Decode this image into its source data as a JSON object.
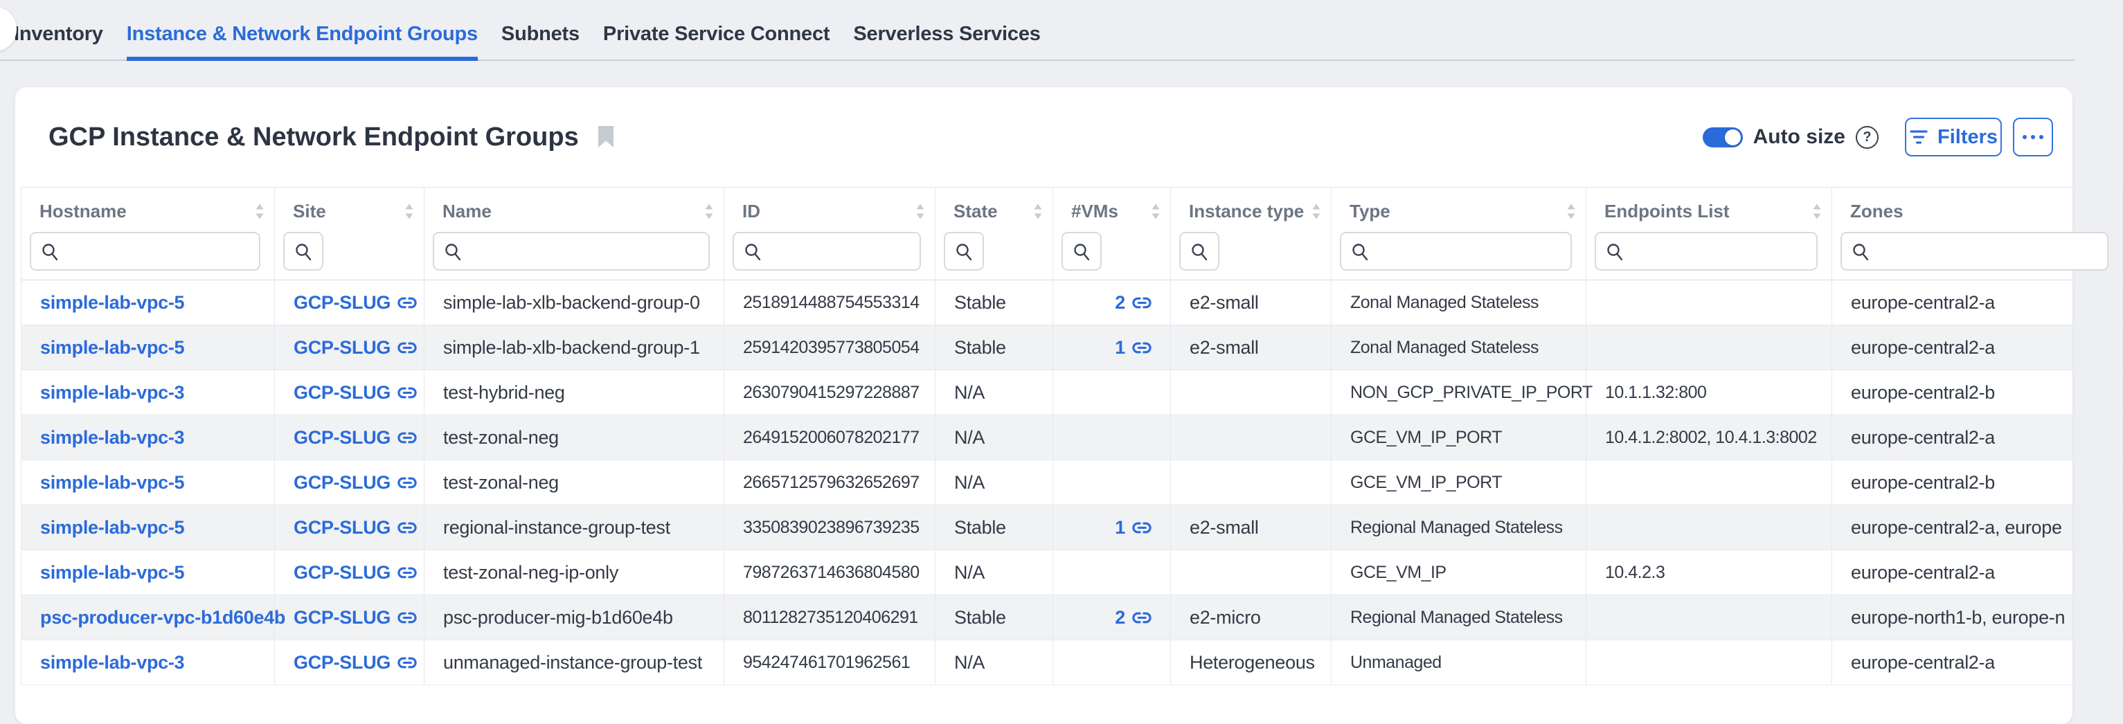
{
  "tabs": {
    "items": [
      {
        "label": "Inventory",
        "active": false
      },
      {
        "label": "Instance & Network Endpoint Groups",
        "active": true
      },
      {
        "label": "Subnets",
        "active": false
      },
      {
        "label": "Private Service Connect",
        "active": false
      },
      {
        "label": "Serverless Services",
        "active": false
      }
    ]
  },
  "header": {
    "title": "GCP Instance & Network Endpoint Groups",
    "auto_size_label": "Auto size",
    "auto_size_on": true,
    "filters_label": "Filters"
  },
  "colors": {
    "accent_blue": "#2b6bd9",
    "row_stripe": "#f1f2f4",
    "page_background": "#edeff3",
    "tab_text": "#2f3744"
  },
  "table": {
    "filter_placeholder": "",
    "columns": [
      {
        "key": "hostname",
        "label": "Hostname"
      },
      {
        "key": "site",
        "label": "Site"
      },
      {
        "key": "name",
        "label": "Name"
      },
      {
        "key": "id",
        "label": "ID"
      },
      {
        "key": "state",
        "label": "State"
      },
      {
        "key": "vms",
        "label": "#VMs"
      },
      {
        "key": "instance_type",
        "label": "Instance type"
      },
      {
        "key": "type",
        "label": "Type"
      },
      {
        "key": "endpoints",
        "label": "Endpoints List"
      },
      {
        "key": "zones",
        "label": "Zones"
      }
    ],
    "rows": [
      {
        "hostname": "simple-lab-vpc-5",
        "site": "GCP-SLUG",
        "name": "simple-lab-xlb-backend-group-0",
        "id": "2518914488754553314",
        "state": "Stable",
        "vms": "2",
        "instance_type": "e2-small",
        "type": "Zonal Managed Stateless",
        "endpoints": "",
        "zones": "europe-central2-a"
      },
      {
        "hostname": "simple-lab-vpc-5",
        "site": "GCP-SLUG",
        "name": "simple-lab-xlb-backend-group-1",
        "id": "2591420395773805054",
        "state": "Stable",
        "vms": "1",
        "instance_type": "e2-small",
        "type": "Zonal Managed Stateless",
        "endpoints": "",
        "zones": "europe-central2-a"
      },
      {
        "hostname": "simple-lab-vpc-3",
        "site": "GCP-SLUG",
        "name": "test-hybrid-neg",
        "id": "2630790415297228887",
        "state": "N/A",
        "vms": "",
        "instance_type": "",
        "type": "NON_GCP_PRIVATE_IP_PORT",
        "endpoints": "10.1.1.32:800",
        "zones": "europe-central2-b"
      },
      {
        "hostname": "simple-lab-vpc-3",
        "site": "GCP-SLUG",
        "name": "test-zonal-neg",
        "id": "2649152006078202177",
        "state": "N/A",
        "vms": "",
        "instance_type": "",
        "type": "GCE_VM_IP_PORT",
        "endpoints": "10.4.1.2:8002, 10.4.1.3:8002",
        "zones": "europe-central2-a"
      },
      {
        "hostname": "simple-lab-vpc-5",
        "site": "GCP-SLUG",
        "name": "test-zonal-neg",
        "id": "2665712579632652697",
        "state": "N/A",
        "vms": "",
        "instance_type": "",
        "type": "GCE_VM_IP_PORT",
        "endpoints": "",
        "zones": "europe-central2-b"
      },
      {
        "hostname": "simple-lab-vpc-5",
        "site": "GCP-SLUG",
        "name": "regional-instance-group-test",
        "id": "3350839023896739235",
        "state": "Stable",
        "vms": "1",
        "instance_type": "e2-small",
        "type": "Regional Managed Stateless",
        "endpoints": "",
        "zones": "europe-central2-a, europe"
      },
      {
        "hostname": "simple-lab-vpc-5",
        "site": "GCP-SLUG",
        "name": "test-zonal-neg-ip-only",
        "id": "7987263714636804580",
        "state": "N/A",
        "vms": "",
        "instance_type": "",
        "type": "GCE_VM_IP",
        "endpoints": "10.4.2.3",
        "zones": "europe-central2-a"
      },
      {
        "hostname": "psc-producer-vpc-b1d60e4b",
        "site": "GCP-SLUG",
        "name": "psc-producer-mig-b1d60e4b",
        "id": "8011282735120406291",
        "state": "Stable",
        "vms": "2",
        "instance_type": "e2-micro",
        "type": "Regional Managed Stateless",
        "endpoints": "",
        "zones": "europe-north1-b, europe-n"
      },
      {
        "hostname": "simple-lab-vpc-3",
        "site": "GCP-SLUG",
        "name": "unmanaged-instance-group-test",
        "id": "954247461701962561",
        "state": "N/A",
        "vms": "",
        "instance_type": "Heterogeneous",
        "type": "Unmanaged",
        "endpoints": "",
        "zones": "europe-central2-a"
      }
    ]
  }
}
